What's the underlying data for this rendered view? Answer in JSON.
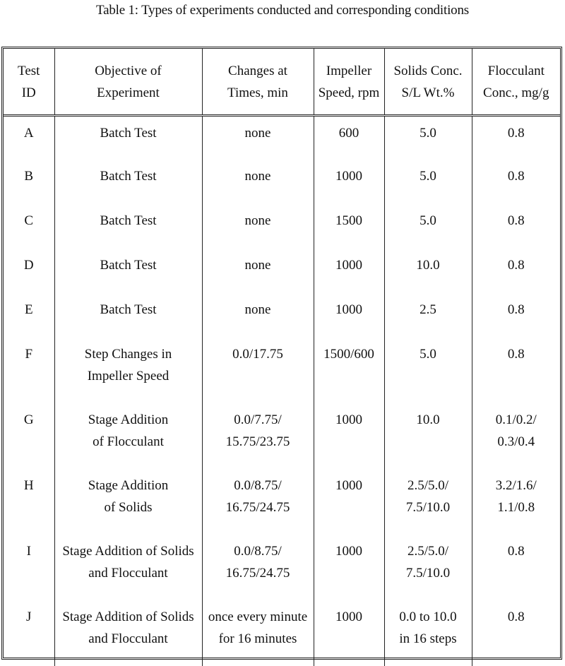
{
  "caption": "Table 1: Types of experiments conducted and corresponding conditions",
  "headers": [
    [
      "Test",
      "ID"
    ],
    [
      "Objective of",
      "Experiment"
    ],
    [
      "Changes at",
      "Times, min"
    ],
    [
      "Impeller",
      "Speed, rpm"
    ],
    [
      "Solids Conc.",
      "S/L Wt.%"
    ],
    [
      "Flocculant",
      "Conc., mg/g"
    ]
  ],
  "rows": [
    [
      [
        "A"
      ],
      [
        "Batch Test"
      ],
      [
        "none"
      ],
      [
        "600"
      ],
      [
        "5.0"
      ],
      [
        "0.8"
      ]
    ],
    [
      [
        "B"
      ],
      [
        "Batch Test"
      ],
      [
        "none"
      ],
      [
        "1000"
      ],
      [
        "5.0"
      ],
      [
        "0.8"
      ]
    ],
    [
      [
        "C"
      ],
      [
        "Batch Test"
      ],
      [
        "none"
      ],
      [
        "1500"
      ],
      [
        "5.0"
      ],
      [
        "0.8"
      ]
    ],
    [
      [
        "D"
      ],
      [
        "Batch Test"
      ],
      [
        "none"
      ],
      [
        "1000"
      ],
      [
        "10.0"
      ],
      [
        "0.8"
      ]
    ],
    [
      [
        "E"
      ],
      [
        "Batch Test"
      ],
      [
        "none"
      ],
      [
        "1000"
      ],
      [
        "2.5"
      ],
      [
        "0.8"
      ]
    ],
    [
      [
        "F"
      ],
      [
        "Step Changes in",
        "Impeller Speed"
      ],
      [
        "0.0/17.75"
      ],
      [
        "1500/600"
      ],
      [
        "5.0"
      ],
      [
        "0.8"
      ]
    ],
    [
      [
        "G"
      ],
      [
        "Stage Addition",
        "of Flocculant"
      ],
      [
        "0.0/7.75/",
        "15.75/23.75"
      ],
      [
        "1000"
      ],
      [
        "10.0"
      ],
      [
        "0.1/0.2/",
        "0.3/0.4"
      ]
    ],
    [
      [
        "H"
      ],
      [
        "Stage Addition",
        "of Solids"
      ],
      [
        "0.0/8.75/",
        "16.75/24.75"
      ],
      [
        "1000"
      ],
      [
        "2.5/5.0/",
        "7.5/10.0"
      ],
      [
        "3.2/1.6/",
        "1.1/0.8"
      ]
    ],
    [
      [
        "I"
      ],
      [
        "Stage Addition of Solids",
        "and Flocculant"
      ],
      [
        "0.0/8.75/",
        "16.75/24.75"
      ],
      [
        "1000"
      ],
      [
        "2.5/5.0/",
        "7.5/10.0"
      ],
      [
        "0.8"
      ]
    ],
    [
      [
        "J"
      ],
      [
        "Stage Addition of Solids",
        "and Flocculant"
      ],
      [
        "once every minute",
        "for 16 minutes"
      ],
      [
        "1000"
      ],
      [
        "0.0 to 10.0",
        "in 16 steps"
      ],
      [
        "0.8"
      ]
    ]
  ]
}
